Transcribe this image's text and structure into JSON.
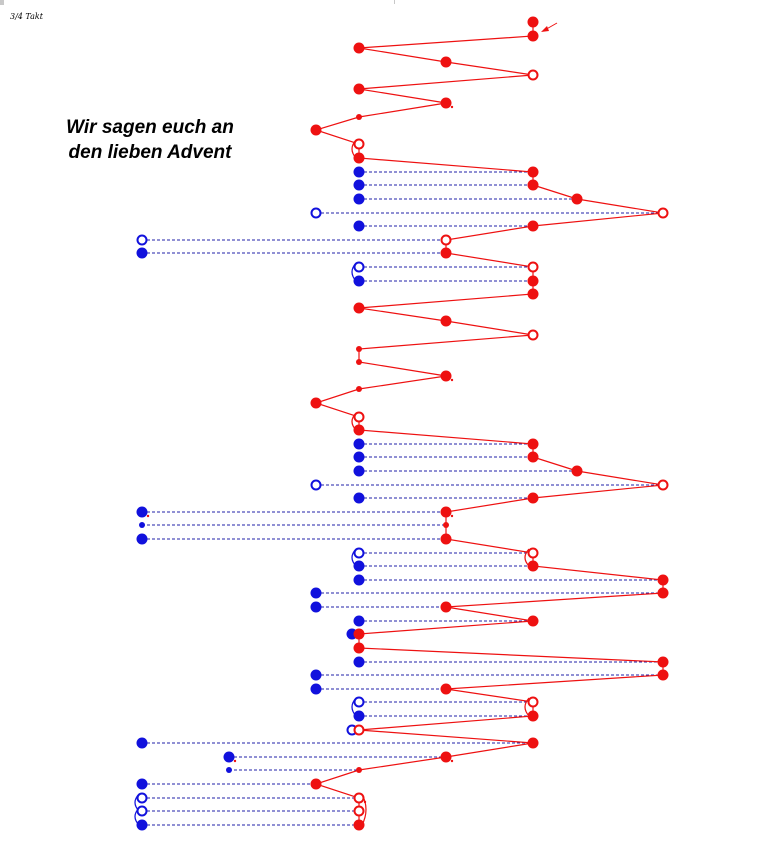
{
  "header": {
    "meter_label": "3/4 Takt"
  },
  "title": {
    "line1": "Wir sagen euch an",
    "line2": "den lieben Advent"
  },
  "colors": {
    "melody": "#ee1111",
    "accompaniment": "#1111dd",
    "dashed_line": "#2222aa",
    "background": "#ffffff"
  },
  "icons": {
    "start_marker": "arrow-icon"
  }
}
